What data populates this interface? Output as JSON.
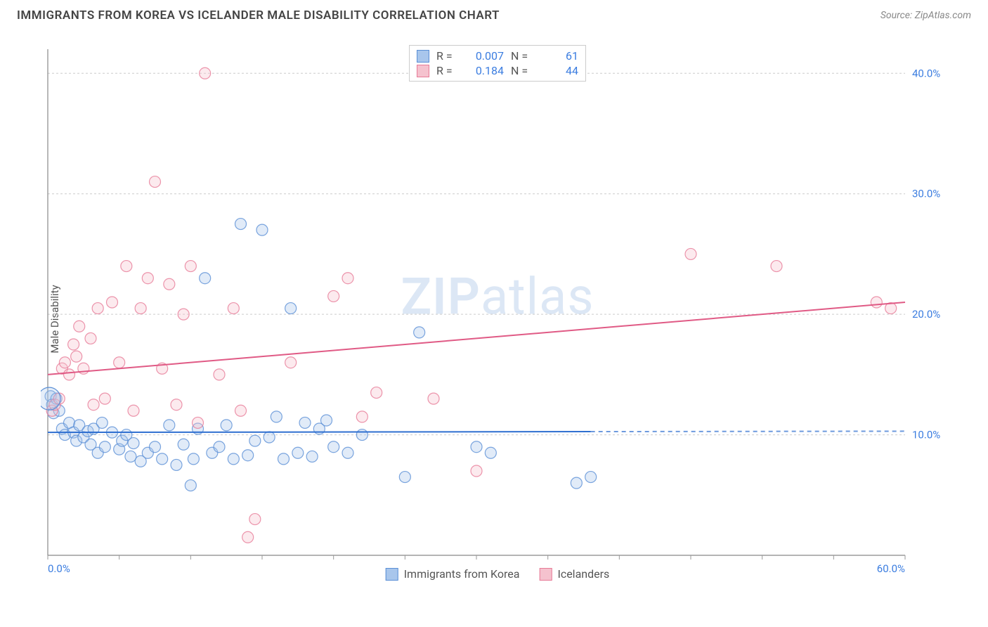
{
  "header": {
    "title": "IMMIGRANTS FROM KOREA VS ICELANDER MALE DISABILITY CORRELATION CHART",
    "source_label": "Source:",
    "source_value": "ZipAtlas.com"
  },
  "ylabel": "Male Disability",
  "chart": {
    "type": "scatter",
    "xlim": [
      0,
      60
    ],
    "ylim": [
      0,
      42
    ],
    "x_ticks": [
      0,
      60
    ],
    "x_tick_labels": [
      "0.0%",
      "60.0%"
    ],
    "x_minor_ticks": [
      0,
      5,
      10,
      15,
      20,
      25,
      30,
      35,
      40,
      45,
      50,
      55,
      60
    ],
    "y_ticks": [
      10,
      20,
      30,
      40
    ],
    "y_tick_labels": [
      "10.0%",
      "20.0%",
      "30.0%",
      "40.0%"
    ],
    "background_color": "#ffffff",
    "grid_color": "#cccccc",
    "axis_color": "#888888",
    "tick_label_color": "#3b7de0",
    "marker_radius": 8,
    "marker_fill_opacity": 0.35,
    "marker_stroke_opacity": 0.8,
    "marker_stroke_width": 1.2,
    "watermark_text_bold": "ZIP",
    "watermark_text_light": "atlas",
    "watermark_color": "#dce7f5",
    "series": [
      {
        "id": "korea",
        "label": "Immigrants from Korea",
        "color_fill": "#a8c6ec",
        "color_stroke": "#5a8fd6",
        "trend": {
          "y_start": 10.2,
          "y_end": 10.3,
          "x_solid_end": 38,
          "color": "#2f6fd0",
          "width": 2
        },
        "points": [
          [
            0.2,
            13.2
          ],
          [
            0.3,
            12.5
          ],
          [
            0.4,
            11.8
          ],
          [
            0.6,
            13.0
          ],
          [
            0.8,
            12.0
          ],
          [
            1.0,
            10.5
          ],
          [
            1.2,
            10.0
          ],
          [
            1.5,
            11.0
          ],
          [
            1.8,
            10.2
          ],
          [
            2.0,
            9.5
          ],
          [
            2.2,
            10.8
          ],
          [
            2.5,
            9.8
          ],
          [
            2.8,
            10.3
          ],
          [
            3.0,
            9.2
          ],
          [
            3.2,
            10.5
          ],
          [
            3.5,
            8.5
          ],
          [
            3.8,
            11.0
          ],
          [
            4.0,
            9.0
          ],
          [
            4.5,
            10.2
          ],
          [
            5.0,
            8.8
          ],
          [
            5.2,
            9.5
          ],
          [
            5.5,
            10.0
          ],
          [
            5.8,
            8.2
          ],
          [
            6.0,
            9.3
          ],
          [
            6.5,
            7.8
          ],
          [
            7.0,
            8.5
          ],
          [
            7.5,
            9.0
          ],
          [
            8.0,
            8.0
          ],
          [
            8.5,
            10.8
          ],
          [
            9.0,
            7.5
          ],
          [
            9.5,
            9.2
          ],
          [
            10.0,
            5.8
          ],
          [
            10.2,
            8.0
          ],
          [
            10.5,
            10.5
          ],
          [
            11.0,
            23.0
          ],
          [
            11.5,
            8.5
          ],
          [
            12.0,
            9.0
          ],
          [
            12.5,
            10.8
          ],
          [
            13.0,
            8.0
          ],
          [
            13.5,
            27.5
          ],
          [
            14.0,
            8.3
          ],
          [
            14.5,
            9.5
          ],
          [
            15.0,
            27.0
          ],
          [
            15.5,
            9.8
          ],
          [
            16.0,
            11.5
          ],
          [
            16.5,
            8.0
          ],
          [
            17.0,
            20.5
          ],
          [
            17.5,
            8.5
          ],
          [
            18.0,
            11.0
          ],
          [
            18.5,
            8.2
          ],
          [
            19.0,
            10.5
          ],
          [
            19.5,
            11.2
          ],
          [
            20.0,
            9.0
          ],
          [
            21.0,
            8.5
          ],
          [
            22.0,
            10.0
          ],
          [
            25.0,
            6.5
          ],
          [
            26.0,
            18.5
          ],
          [
            30.0,
            9.0
          ],
          [
            31.0,
            8.5
          ],
          [
            37.0,
            6.0
          ],
          [
            38.0,
            6.5
          ]
        ]
      },
      {
        "id": "iceland",
        "label": "Icelanders",
        "color_fill": "#f5c2ce",
        "color_stroke": "#e77a97",
        "trend": {
          "y_start": 15.0,
          "y_end": 21.0,
          "x_solid_end": 60,
          "color": "#e05a85",
          "width": 2
        },
        "points": [
          [
            0.3,
            12.0
          ],
          [
            0.5,
            12.5
          ],
          [
            0.8,
            13.0
          ],
          [
            1.0,
            15.5
          ],
          [
            1.2,
            16.0
          ],
          [
            1.5,
            15.0
          ],
          [
            1.8,
            17.5
          ],
          [
            2.0,
            16.5
          ],
          [
            2.2,
            19.0
          ],
          [
            2.5,
            15.5
          ],
          [
            3.0,
            18.0
          ],
          [
            3.2,
            12.5
          ],
          [
            3.5,
            20.5
          ],
          [
            4.0,
            13.0
          ],
          [
            4.5,
            21.0
          ],
          [
            5.0,
            16.0
          ],
          [
            5.5,
            24.0
          ],
          [
            6.0,
            12.0
          ],
          [
            6.5,
            20.5
          ],
          [
            7.0,
            23.0
          ],
          [
            7.5,
            31.0
          ],
          [
            8.0,
            15.5
          ],
          [
            8.5,
            22.5
          ],
          [
            9.0,
            12.5
          ],
          [
            9.5,
            20.0
          ],
          [
            10.0,
            24.0
          ],
          [
            10.5,
            11.0
          ],
          [
            11.0,
            40.0
          ],
          [
            12.0,
            15.0
          ],
          [
            13.0,
            20.5
          ],
          [
            13.5,
            12.0
          ],
          [
            14.0,
            1.5
          ],
          [
            14.5,
            3.0
          ],
          [
            17.0,
            16.0
          ],
          [
            20.0,
            21.5
          ],
          [
            21.0,
            23.0
          ],
          [
            22.0,
            11.5
          ],
          [
            23.0,
            13.5
          ],
          [
            27.0,
            13.0
          ],
          [
            30.0,
            7.0
          ],
          [
            45.0,
            25.0
          ],
          [
            51.0,
            24.0
          ],
          [
            58.0,
            21.0
          ],
          [
            59.0,
            20.5
          ]
        ]
      }
    ]
  },
  "legend_top": {
    "rows": [
      {
        "swatch_fill": "#a8c6ec",
        "swatch_stroke": "#5a8fd6",
        "r_label": "R =",
        "r_value": "0.007",
        "n_label": "N =",
        "n_value": "61"
      },
      {
        "swatch_fill": "#f5c2ce",
        "swatch_stroke": "#e77a97",
        "r_label": "R =",
        "r_value": "0.184",
        "n_label": "N =",
        "n_value": "44"
      }
    ]
  },
  "legend_bottom": {
    "items": [
      {
        "swatch_fill": "#a8c6ec",
        "swatch_stroke": "#5a8fd6",
        "label": "Immigrants from Korea"
      },
      {
        "swatch_fill": "#f5c2ce",
        "swatch_stroke": "#e77a97",
        "label": "Icelanders"
      }
    ]
  }
}
